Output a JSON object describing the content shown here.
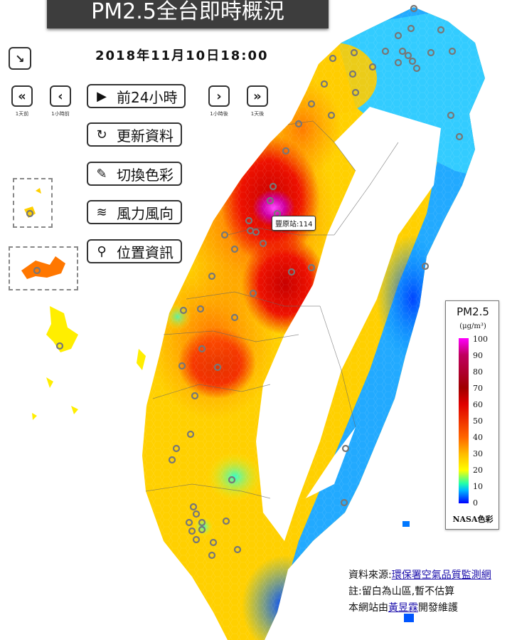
{
  "header": {
    "title": "PM2.5全台即時概況",
    "datetime": "2018年11月10日18:00"
  },
  "toolbar": {
    "collapse_icon": "arrow-down-right-icon",
    "nav": [
      {
        "glyph": "«",
        "label": "1天前"
      },
      {
        "glyph": "‹",
        "label": "1小時前"
      },
      {
        "glyph": "›",
        "label": "1小時後"
      },
      {
        "glyph": "»",
        "label": "1天後"
      }
    ],
    "menu": [
      {
        "icon": "▶",
        "icon_name": "play-circle-icon",
        "label": "前24小時"
      },
      {
        "icon": "↻",
        "icon_name": "refresh-icon",
        "label": "更新資料"
      },
      {
        "icon": "✎",
        "icon_name": "paint-brush-icon",
        "label": "切換色彩"
      },
      {
        "icon": "≋",
        "icon_name": "wind-icon",
        "label": "風力風向"
      },
      {
        "icon": "⚲",
        "icon_name": "location-pin-icon",
        "label": "位置資訊"
      }
    ]
  },
  "map": {
    "tooltip": "豐原站:114"
  },
  "legend": {
    "title": "PM2.5",
    "unit": "(μg/m³)",
    "ticks": [
      "100",
      "90",
      "80",
      "70",
      "60",
      "50",
      "40",
      "30",
      "20",
      "10",
      "0"
    ],
    "footer": "NASA色彩"
  },
  "source": {
    "line1_prefix": "資料來源:",
    "line1_link": "環保署空氣品質監測網",
    "line2": "註:留白為山區,暫不估算",
    "line3_prefix": "本網站由",
    "line3_link": "黃昱霖",
    "line3_suffix": "開發維護"
  },
  "colors": {
    "title_bg": "#3d3d3d",
    "link": "#1a0dab"
  }
}
